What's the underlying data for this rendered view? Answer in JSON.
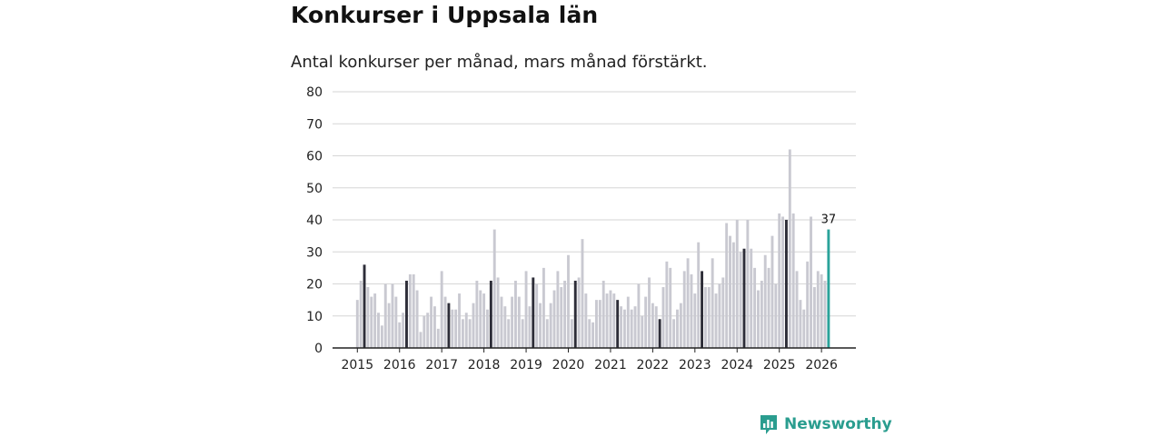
{
  "chart_data": {
    "type": "bar",
    "title": "Konkurser i Uppsala län",
    "subtitle": "Antal konkurser per månad, mars månad förstärkt.",
    "xlabel": "",
    "ylabel": "",
    "ylim": [
      0,
      80
    ],
    "y_ticks": [
      "0",
      "10",
      "20",
      "30",
      "40",
      "50",
      "60",
      "70",
      "80"
    ],
    "x_tick_labels": [
      "2015",
      "2016",
      "2017",
      "2018",
      "2019",
      "2020",
      "2021",
      "2022",
      "2023",
      "2024",
      "2025",
      "2026"
    ],
    "grid": true,
    "highlight_month": "mars",
    "series": [
      {
        "name": "Antal konkurser",
        "start": "2015-01",
        "values": [
          15,
          21,
          26,
          19,
          16,
          17,
          11,
          7,
          20,
          14,
          20,
          16,
          8,
          11,
          21,
          23,
          23,
          18,
          5,
          10,
          11,
          16,
          13,
          6,
          24,
          16,
          14,
          12,
          12,
          17,
          9,
          11,
          9,
          14,
          21,
          18,
          17,
          12,
          21,
          37,
          22,
          16,
          13,
          9,
          16,
          21,
          16,
          9,
          24,
          13,
          22,
          20,
          14,
          25,
          9,
          14,
          18,
          24,
          19,
          21,
          29,
          9,
          21,
          22,
          34,
          17,
          9,
          8,
          15,
          15,
          21,
          17,
          18,
          17,
          15,
          13,
          12,
          16,
          12,
          13,
          20,
          10,
          16,
          22,
          14,
          13,
          9,
          19,
          27,
          25,
          9,
          12,
          14,
          24,
          28,
          23,
          17,
          33,
          24,
          19,
          19,
          28,
          17,
          20,
          22,
          39,
          35,
          33,
          40,
          30,
          31,
          40,
          31,
          25,
          18,
          21,
          29,
          25,
          35,
          20,
          42,
          41,
          40,
          62,
          42,
          24,
          15,
          12,
          27,
          41,
          19,
          24,
          23,
          21,
          37
        ]
      }
    ],
    "last_value_label": "37",
    "colors": {
      "bar": "#c9c9d1",
      "highlight": "#2d2d38",
      "latest": "#2aa39a",
      "grid": "#d6d6d6",
      "axis": "#222222"
    }
  },
  "brand": {
    "name": "Newsworthy",
    "icon": "bar-chart-speech-icon",
    "color": "#2a9d8f"
  }
}
